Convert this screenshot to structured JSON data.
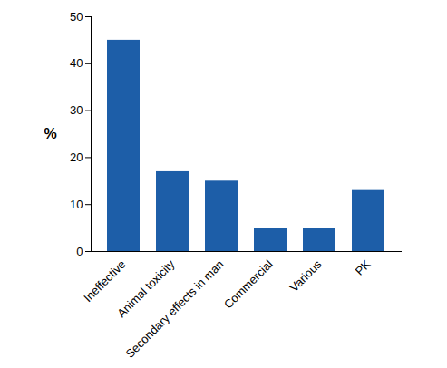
{
  "chart_data": {
    "type": "bar",
    "ylabel": "%",
    "categories": [
      "Ineffective",
      "Animal toxicity",
      "Secondary effects in man",
      "Commercial",
      "Various",
      "PK"
    ],
    "values": [
      45,
      17,
      15,
      5,
      5,
      13
    ],
    "color": "#1d5ea8",
    "ylim": [
      0,
      50
    ],
    "yticks": [
      0,
      10,
      20,
      30,
      40,
      50
    ],
    "grid": false
  }
}
